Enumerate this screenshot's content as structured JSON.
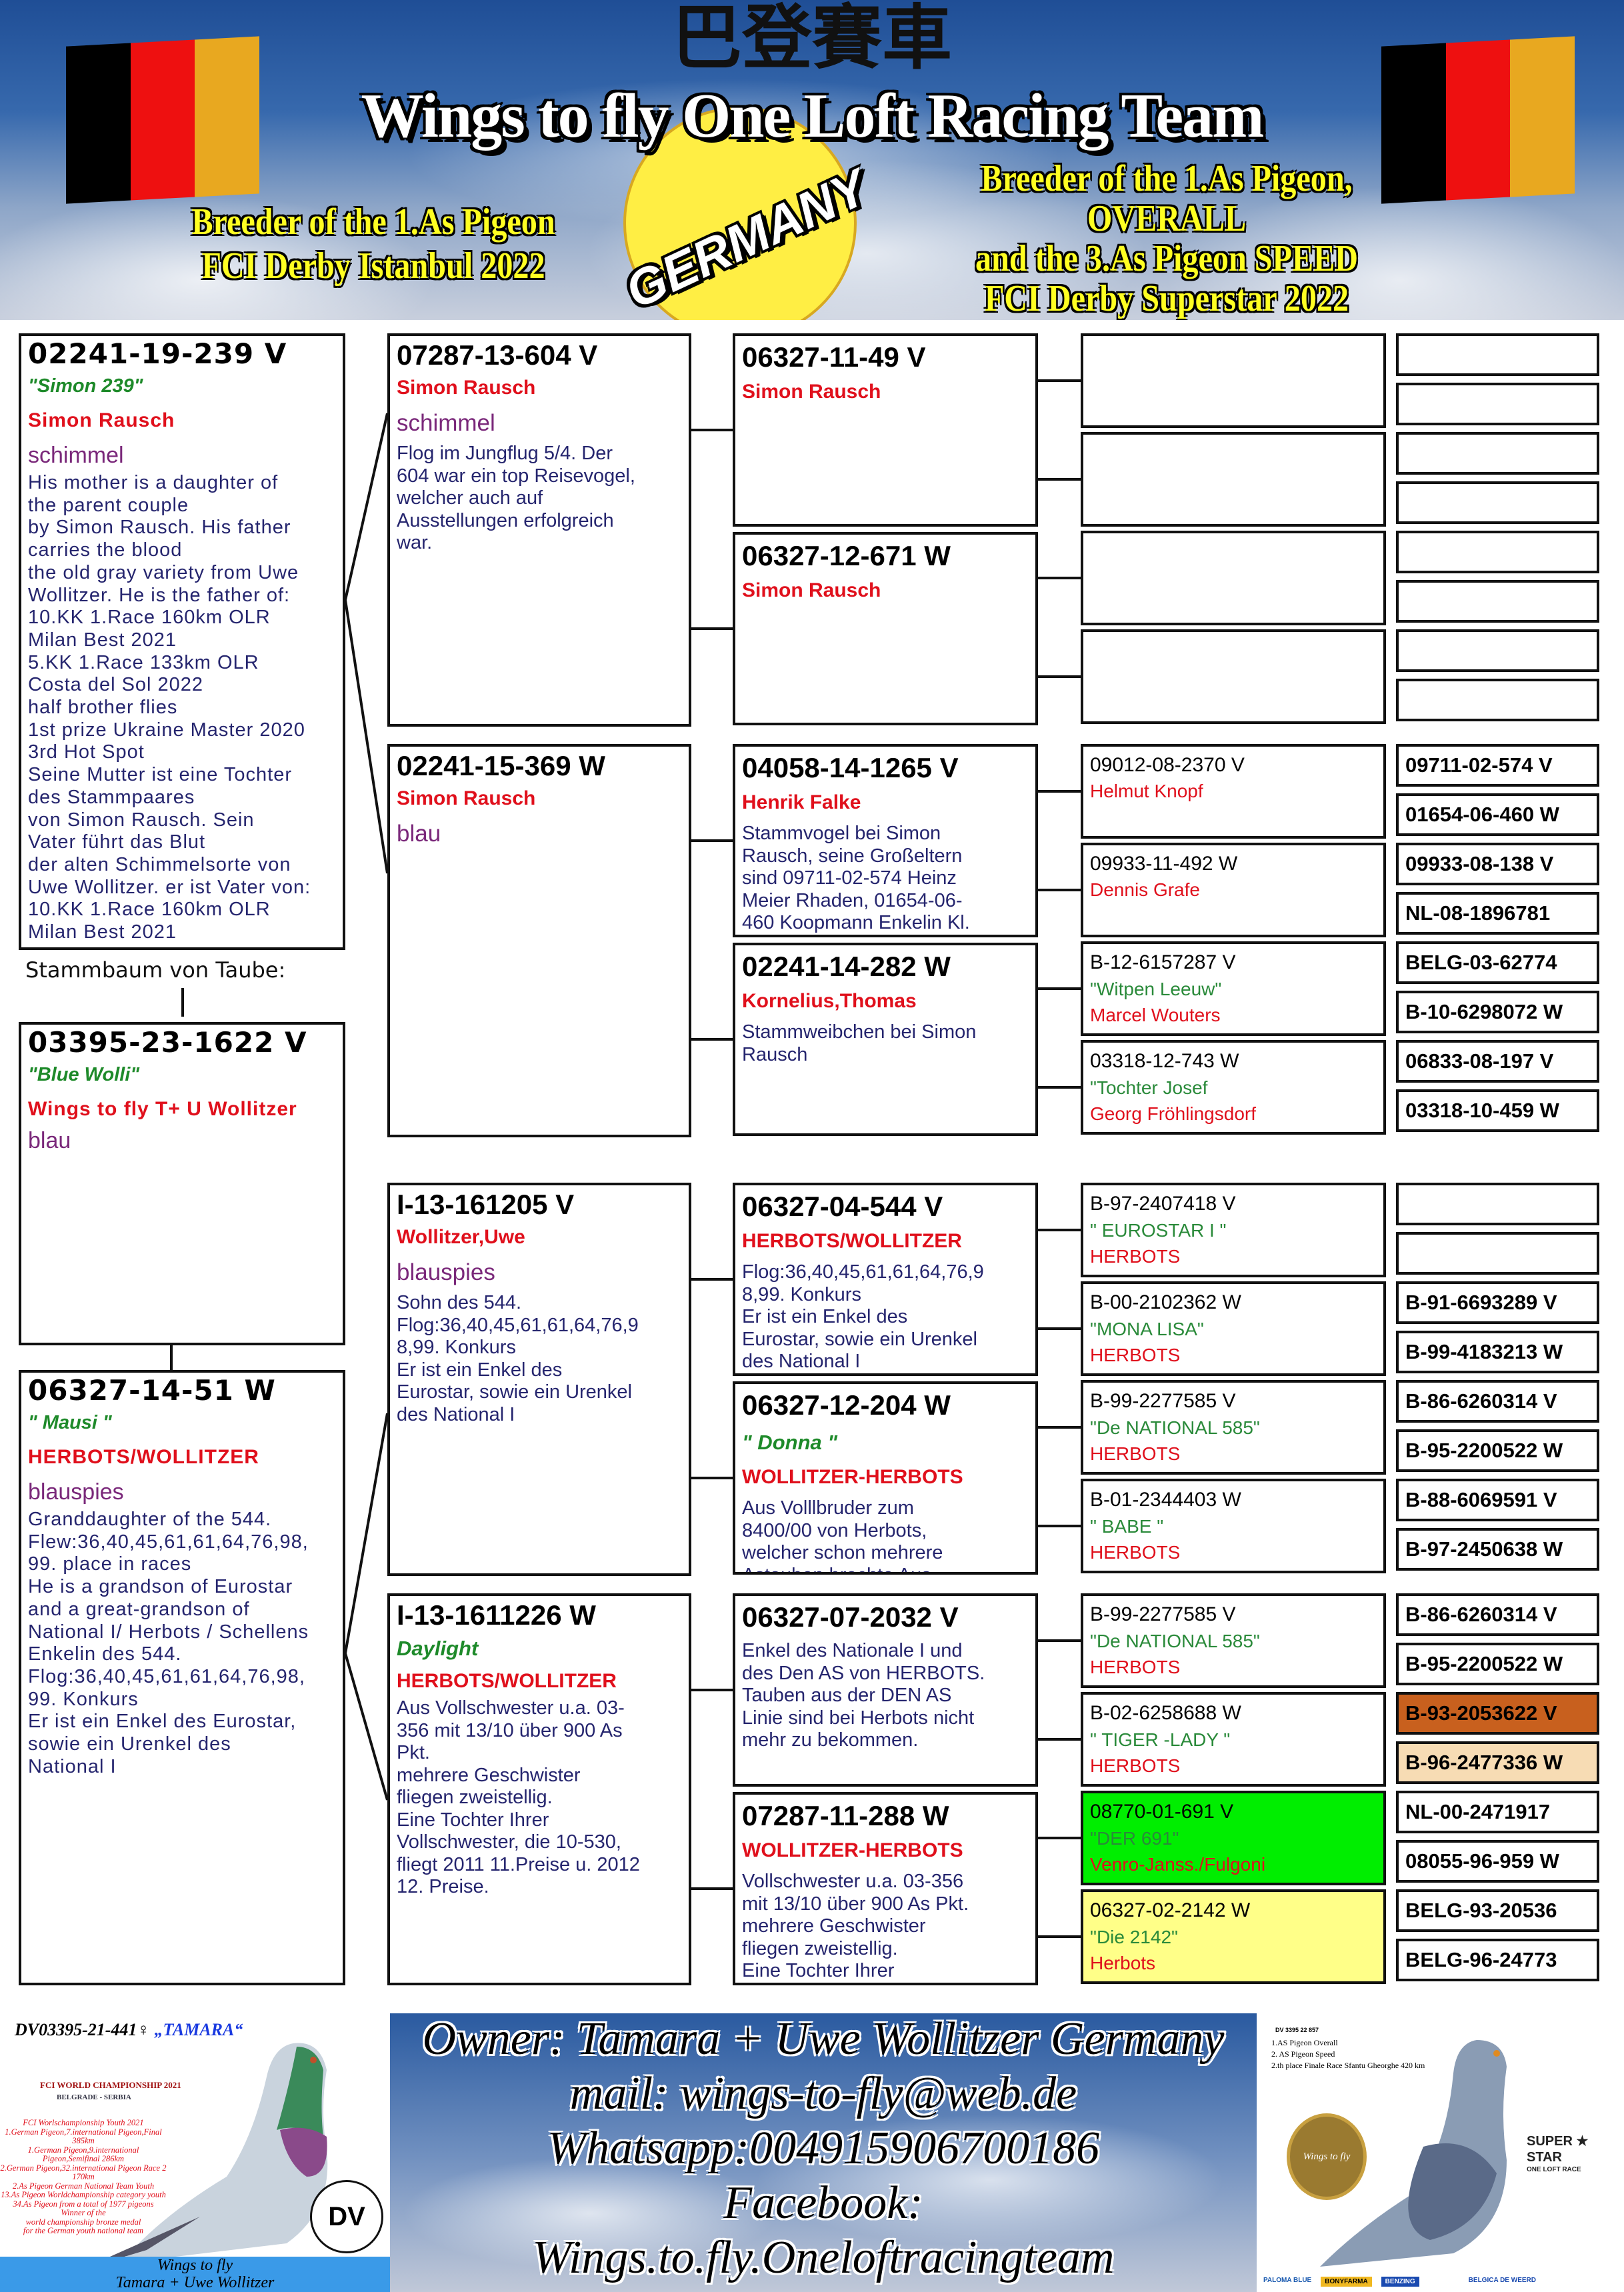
{
  "header": {
    "chinese": "巴登賽車",
    "title": "Wings to fly One Loft Racing Team",
    "germany": "GERMANY",
    "left_award": [
      "Breeder of the 1.As Pigeon",
      "FCI Derby Istanbul 2022"
    ],
    "right_award": [
      "Breeder of the 1.As Pigeon,",
      "OVERALL",
      "and the 3.As Pigeon SPEED",
      "FCI Derby Superstar 2022"
    ],
    "flag_colors": [
      "#000000",
      "#ee1010",
      "#e8a820"
    ]
  },
  "pedigree": {
    "label": "Stammbaum von Taube:",
    "sire": {
      "ring": "02241-19-239 V",
      "name": "\"Simon 239\"",
      "breeder": "Simon Rausch",
      "color": "schimmel",
      "notes": "His mother is a daughter of\nthe parent couple\nby Simon Rausch. His father\ncarries the blood\nthe old gray variety from Uwe\nWollitzer. He is the father of:\n10.KK 1.Race 160km OLR\nMilan Best 2021\n5.KK 1.Race 133km OLR\nCosta del Sol 2022\nhalf brother flies\n1st prize Ukraine Master 2020\n3rd Hot Spot\nSeine Mutter ist eine Tochter\ndes Stammpaares\nvon Simon Rausch. Sein\nVater führt das Blut\nder alten Schimmelsorte von\nUwe Wollitzer. er ist Vater von:\n10.KK 1.Race 160km OLR\nMilan Best 2021"
    },
    "subject": {
      "ring": "03395-23-1622 V",
      "name": "\"Blue Wolli\"",
      "breeder": "Wings to fly T+ U Wollitzer",
      "color": "blau"
    },
    "dam": {
      "ring": "06327-14-51 W",
      "name": "\" Mausi \"",
      "breeder": "HERBOTS/WOLLITZER",
      "color": "blauspies",
      "notes": "Granddaughter of the 544.\nFlew:36,40,45,61,61,64,76,98,\n99. place in races\nHe is a grandson of Eurostar\nand a great-grandson of\nNational I/ Herbots / Schellens\nEnkelin des 544.\nFlog:36,40,45,61,61,64,76,98,\n99. Konkurs\nEr ist ein Enkel des Eurostar,\nsowie ein Urenkel des\nNational I"
    },
    "gen2": [
      {
        "ring": "07287-13-604 V",
        "breeder": "Simon Rausch",
        "color": "schimmel",
        "notes": "Flog im Jungflug 5/4. Der\n604 war ein top Reisevogel,\nwelcher auch auf\nAusstellungen erfolgreich\nwar."
      },
      {
        "ring": "02241-15-369 W",
        "breeder": "Simon Rausch",
        "color": "blau"
      },
      {
        "ring": "I-13-161205 V",
        "breeder": "Wollitzer,Uwe",
        "color": "blauspies",
        "notes": "Sohn des 544.\nFlog:36,40,45,61,61,64,76,9\n8,99. Konkurs\nEr ist ein Enkel des\nEurostar, sowie ein Urenkel\ndes National I"
      },
      {
        "ring": "I-13-1611226 W",
        "name": "Daylight",
        "breeder": "HERBOTS/WOLLITZER",
        "notes": "Aus Vollschwester u.a. 03-\n356 mit 13/10 über 900 As\nPkt.\nmehrere Geschwister\nfliegen zweistellig.\nEine Tochter Ihrer\nVollschwester, die 10-530,\nfliegt 2011 11.Preise u. 2012\n12. Preise."
      }
    ],
    "gen3": [
      {
        "ring": "06327-11-49 V",
        "breeder": "Simon Rausch"
      },
      {
        "ring": "06327-12-671 W",
        "breeder": "Simon Rausch"
      },
      {
        "ring": "04058-14-1265 V",
        "breeder": "Henrik Falke",
        "notes": "Stammvogel bei Simon\nRausch, seine Großeltern\nsind 09711-02-574 Heinz\nMeier Rhaden, 01654-06-\n460 Koopmann Enkelin Kl."
      },
      {
        "ring": "02241-14-282 W",
        "breeder": "Kornelius,Thomas",
        "notes": "Stammweibchen bei Simon\nRausch"
      },
      {
        "ring": "06327-04-544 V",
        "breeder": "HERBOTS/WOLLITZER",
        "notes": "Flog:36,40,45,61,61,64,76,9\n8,99. Konkurs\nEr ist ein Enkel des\nEurostar, sowie ein Urenkel\ndes National I"
      },
      {
        "ring": "06327-12-204 W",
        "name": "\" Donna \"",
        "breeder": "WOLLITZER-HERBOTS",
        "notes": "Aus Volllbruder zum\n8400/00 von Herbots,\nwelcher schon mehrere\nAstauben brachte Aus"
      },
      {
        "ring": "06327-07-2032 V",
        "notes": "Enkel des Nationale I und\ndes Den AS von HERBOTS.\nTauben aus der DEN AS\nLinie sind bei Herbots nicht\nmehr zu bekommen."
      },
      {
        "ring": "07287-11-288 W",
        "breeder": "WOLLITZER-HERBOTS",
        "notes": "Vollschwester u.a. 03-356\nmit 13/10 über 900 As Pkt.\nmehrere Geschwister\nfliegen zweistellig.\nEine Tochter Ihrer"
      }
    ],
    "gen4": [
      {},
      {},
      {},
      {},
      {
        "ring": "09012-08-2370 V",
        "breeder": "Helmut Knopf"
      },
      {
        "ring": "09933-11-492 W",
        "breeder": "Dennis Grafe"
      },
      {
        "ring": "B-12-6157287 V",
        "name": "\"Witpen Leeuw\"",
        "breeder": "Marcel Wouters"
      },
      {
        "ring": "03318-12-743 W",
        "name": "\"Tochter Josef",
        "breeder": "Georg Fröhlingsdorf"
      },
      {
        "ring": "B-97-2407418 V",
        "name": "\" EUROSTAR I \"",
        "breeder": "HERBOTS"
      },
      {
        "ring": "B-00-2102362 W",
        "name": "\"MONA LISA\"",
        "breeder": "HERBOTS"
      },
      {
        "ring": "B-99-2277585 V",
        "name": "\"De NATIONAL 585\"",
        "breeder": "HERBOTS"
      },
      {
        "ring": "B-01-2344403 W",
        "name": "\" BABE \"",
        "breeder": "HERBOTS"
      },
      {
        "ring": "B-99-2277585 V",
        "name": "\"De NATIONAL 585\"",
        "breeder": "HERBOTS"
      },
      {
        "ring": "B-02-6258688 W",
        "name": "\" TIGER -LADY \"",
        "breeder": "HERBOTS"
      },
      {
        "ring": "08770-01-691 V",
        "name": "\"DER 691\"",
        "breeder": "Venro-Janss./Fulgoni",
        "bg": "#00ee00"
      },
      {
        "ring": "06327-02-2142 W",
        "name": "\"Die 2142\"",
        "breeder": "Herbots",
        "bg": "#ffff88"
      }
    ],
    "gen5": [
      {
        "ring": ""
      },
      {
        "ring": ""
      },
      {
        "ring": ""
      },
      {
        "ring": ""
      },
      {
        "ring": ""
      },
      {
        "ring": ""
      },
      {
        "ring": ""
      },
      {
        "ring": ""
      },
      {
        "ring": "09711-02-574 V"
      },
      {
        "ring": "01654-06-460 W"
      },
      {
        "ring": "09933-08-138 V"
      },
      {
        "ring": "NL-08-1896781"
      },
      {
        "ring": "BELG-03-62774"
      },
      {
        "ring": "B-10-6298072 W"
      },
      {
        "ring": "06833-08-197 V"
      },
      {
        "ring": "03318-10-459 W"
      },
      {
        "ring": ""
      },
      {
        "ring": ""
      },
      {
        "ring": "B-91-6693289 V"
      },
      {
        "ring": "B-99-4183213 W"
      },
      {
        "ring": "B-86-6260314 V"
      },
      {
        "ring": "B-95-2200522 W"
      },
      {
        "ring": "B-88-6069591 V"
      },
      {
        "ring": "B-97-2450638 W"
      },
      {
        "ring": "B-86-6260314 V"
      },
      {
        "ring": "B-95-2200522 W"
      },
      {
        "ring": "B-93-2053622 V",
        "bg": "#c8601e"
      },
      {
        "ring": "B-96-2477336 W",
        "bg": "#f7dcb4"
      },
      {
        "ring": "NL-00-2471917"
      },
      {
        "ring": "08055-96-959 W"
      },
      {
        "ring": "BELG-93-20536"
      },
      {
        "ring": "BELG-96-24773"
      }
    ]
  },
  "footer": {
    "owner_lines": [
      "Owner: Tamara + Uwe Wollitzer Germany",
      "mail: wings-to-fly@web.de",
      "Whatsapp:004915906700186",
      "Facebook:",
      "Wings.to.fly.Oneloftracingteam"
    ],
    "left_card": {
      "ring": "DV03395-21-441♀",
      "name": "„TAMARA“",
      "event": "FCI WORLD CHAMPIONSHIP 2021",
      "place": "BELGRADE - SERBIA",
      "results": [
        "FCI Worlschampionship Youth 2021",
        "1.German Pigeon,7.international Pigeon,Final 385km",
        "1.German Pigeon,9.international Pigeon,Semifinal 286km",
        "2.German Pigeon,32.international Pigeon Race 2 170km",
        "2.As Pigeon German National Team Youth",
        "13.As Pigeon Worldchampionship category youth",
        "34.As Pigeon from a total of 1977 pigeons",
        "Winner of the",
        "world championship bronze medal",
        "for the German youth national team"
      ],
      "banner": [
        "Wings to fly",
        "Tamara + Uwe Wollitzer"
      ]
    },
    "right_card": {
      "ring": "DV 3395 22 857",
      "results": [
        "1.AS Pigeon Overall",
        "2. AS Pigeon Speed",
        "2.th place Finale Race Sfantu Gheorghe 420 km"
      ],
      "badge": "Wings to fly",
      "super_star": [
        "SUPER",
        "STAR",
        "ONE LOFT RACE"
      ],
      "sponsors": [
        "PALOMA BLUE",
        "BONYFARMA",
        "BENZING",
        "BELGICA DE WEERD"
      ]
    }
  }
}
